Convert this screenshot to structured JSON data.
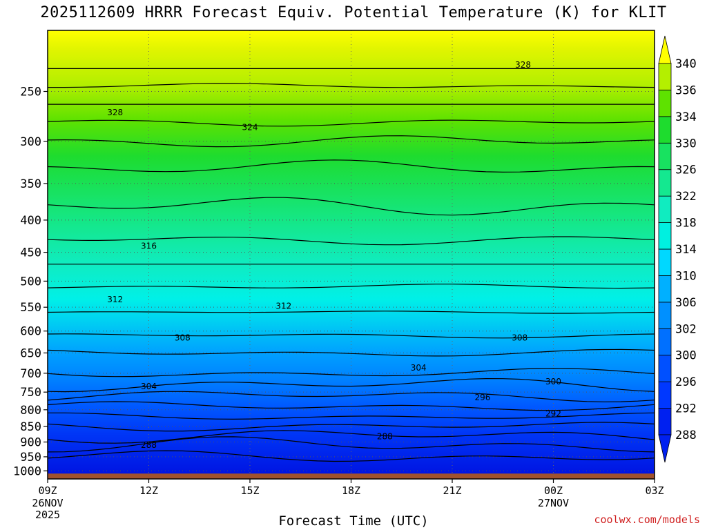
{
  "title": "2025112609 HRRR Forecast Equiv. Potential Temperature (K) for KLIT",
  "xlabel": "Forecast Time (UTC)",
  "credit": "coolwx.com/models",
  "chart_data": {
    "type": "contour",
    "title": "2025112609 HRRR Forecast Equiv. Potential Temperature (K) for KLIT",
    "xlabel": "Forecast Time (UTC)",
    "x_ticks": [
      {
        "hour": 0,
        "label": "09Z",
        "sub": [
          "26NOV",
          "2025"
        ]
      },
      {
        "hour": 3,
        "label": "12Z",
        "sub": []
      },
      {
        "hour": 6,
        "label": "15Z",
        "sub": []
      },
      {
        "hour": 9,
        "label": "18Z",
        "sub": []
      },
      {
        "hour": 12,
        "label": "21Z",
        "sub": []
      },
      {
        "hour": 15,
        "label": "00Z",
        "sub": [
          "27NOV"
        ]
      },
      {
        "hour": 18,
        "label": "03Z",
        "sub": []
      }
    ],
    "xlim": [
      0,
      18
    ],
    "y_ticks": [
      250,
      300,
      350,
      400,
      450,
      500,
      550,
      600,
      650,
      700,
      750,
      800,
      850,
      900,
      950,
      1000
    ],
    "ylim_pressure_hPa": [
      1030,
      200
    ],
    "colorbar_levels": [
      288,
      292,
      296,
      300,
      302,
      306,
      310,
      314,
      318,
      322,
      326,
      330,
      334,
      336,
      340
    ],
    "contour_labels": [
      {
        "text": "328",
        "hour": 14.1,
        "p": 227
      },
      {
        "text": "328",
        "hour": 2.0,
        "p": 270
      },
      {
        "text": "324",
        "hour": 6.0,
        "p": 285
      },
      {
        "text": "316",
        "hour": 3.0,
        "p": 440
      },
      {
        "text": "312",
        "hour": 2.0,
        "p": 535
      },
      {
        "text": "312",
        "hour": 7.0,
        "p": 548
      },
      {
        "text": "308",
        "hour": 4.0,
        "p": 615
      },
      {
        "text": "308",
        "hour": 14.0,
        "p": 615
      },
      {
        "text": "304",
        "hour": 11.0,
        "p": 686
      },
      {
        "text": "304",
        "hour": 3.0,
        "p": 735
      },
      {
        "text": "300",
        "hour": 15.0,
        "p": 722
      },
      {
        "text": "296",
        "hour": 12.9,
        "p": 765
      },
      {
        "text": "292",
        "hour": 15.0,
        "p": 812
      },
      {
        "text": "288",
        "hour": 10.0,
        "p": 882
      },
      {
        "text": "288",
        "hour": 3.0,
        "p": 910
      }
    ]
  }
}
